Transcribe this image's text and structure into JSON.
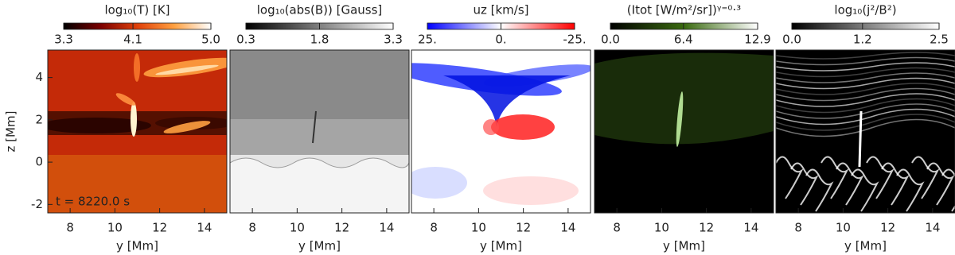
{
  "chart_data": [
    {
      "type": "image",
      "title": "log₁₀(T)  [K]",
      "colormap": [
        "#000000",
        "#7a0000",
        "#e0400a",
        "#ffa040",
        "#ffffff"
      ],
      "clim": [
        3.3,
        5.0
      ],
      "cticks": [
        3.3,
        4.1,
        {
          "value": 5.0,
          "label": "5.0"
        }
      ],
      "x_label": "y [Mm]",
      "y_label": "z [Mm]",
      "xlim": [
        7,
        15
      ],
      "ylim": [
        -2.4,
        5.3
      ],
      "xticks": [
        8,
        10,
        12,
        14
      ],
      "yticks": [
        -2,
        0,
        2,
        4
      ],
      "annotation": "t =   8220.0 s"
    },
    {
      "type": "image",
      "title": "log₁₀(abs(B))  [Gauss]",
      "colormap": [
        "#000000",
        "#ffffff"
      ],
      "clim": [
        0.3,
        3.3
      ],
      "cticks": [
        0.3,
        1.8,
        3.3
      ],
      "x_label": "y [Mm]",
      "xlim": [
        7,
        15
      ],
      "ylim": [
        -2.4,
        5.3
      ],
      "xticks": [
        8,
        10,
        12,
        14
      ]
    },
    {
      "type": "image",
      "title": "uz  [km/s]",
      "colormap": [
        "#0000ff",
        "#ffffff",
        "#ff0000"
      ],
      "clim": [
        25,
        -25
      ],
      "cticks": [
        {
          "value": 25,
          "label": "25."
        },
        {
          "value": 0,
          "label": "0."
        },
        {
          "value": -25,
          "label": "-25."
        }
      ],
      "x_label": "y [Mm]",
      "xlim": [
        7,
        15
      ],
      "ylim": [
        -2.4,
        5.3
      ],
      "xticks": [
        8,
        10,
        12,
        14
      ]
    },
    {
      "type": "image",
      "title": "(Itot  [W/m²/sr])ᵞ⁼⁰·³",
      "colormap": [
        "#000000",
        "#3a6a10",
        "#ffffff"
      ],
      "clim": [
        0.0,
        12.9
      ],
      "cticks": [
        {
          "value": 0.0,
          "label": "0.0"
        },
        6.4,
        12.9
      ],
      "x_label": "y [Mm]",
      "xlim": [
        7,
        15
      ],
      "ylim": [
        -2.4,
        5.3
      ],
      "xticks": [
        8,
        10,
        12,
        14
      ]
    },
    {
      "type": "image",
      "title": "log₁₀(j²/B²)",
      "colormap": [
        "#000000",
        "#ffffff"
      ],
      "clim": [
        0.0,
        2.5
      ],
      "cticks": [
        {
          "value": 0.0,
          "label": "0.0"
        },
        1.2,
        2.5
      ],
      "x_label": "y [Mm]",
      "xlim": [
        7,
        15
      ],
      "ylim": [
        -2.4,
        5.3
      ],
      "xticks": [
        8,
        10,
        12,
        14
      ]
    }
  ]
}
